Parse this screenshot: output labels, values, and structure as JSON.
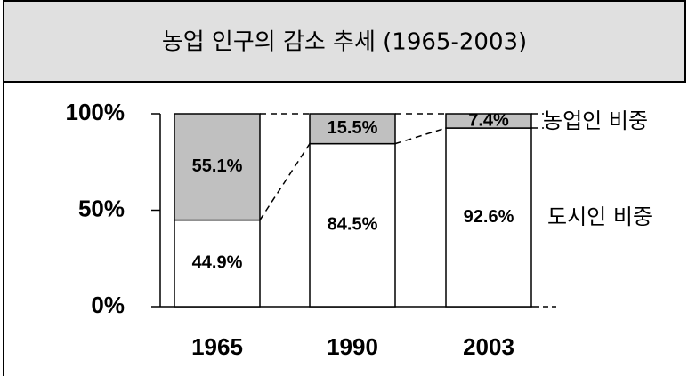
{
  "chart_data": {
    "type": "stacked_bar",
    "title": "농업 인구의 감소 추세 (1965-2003)",
    "categories": [
      "1965",
      "1990",
      "2003"
    ],
    "series": [
      {
        "name": "도시인 비중",
        "color": "#ffffff",
        "values": [
          44.9,
          84.5,
          92.6
        ],
        "value_labels": [
          "44.9%",
          "84.5%",
          "92.6%"
        ]
      },
      {
        "name": "농업인 비중",
        "color": "#c0c0c0",
        "values": [
          55.1,
          15.5,
          7.4
        ],
        "value_labels": [
          "55.1%",
          "15.5%",
          "7.4%"
        ]
      }
    ],
    "ylim": [
      0,
      100
    ],
    "yticks": [
      {
        "value": 0,
        "label": "0%"
      },
      {
        "value": 50,
        "label": "50%"
      },
      {
        "value": 100,
        "label": "100%"
      }
    ],
    "grid": false
  }
}
